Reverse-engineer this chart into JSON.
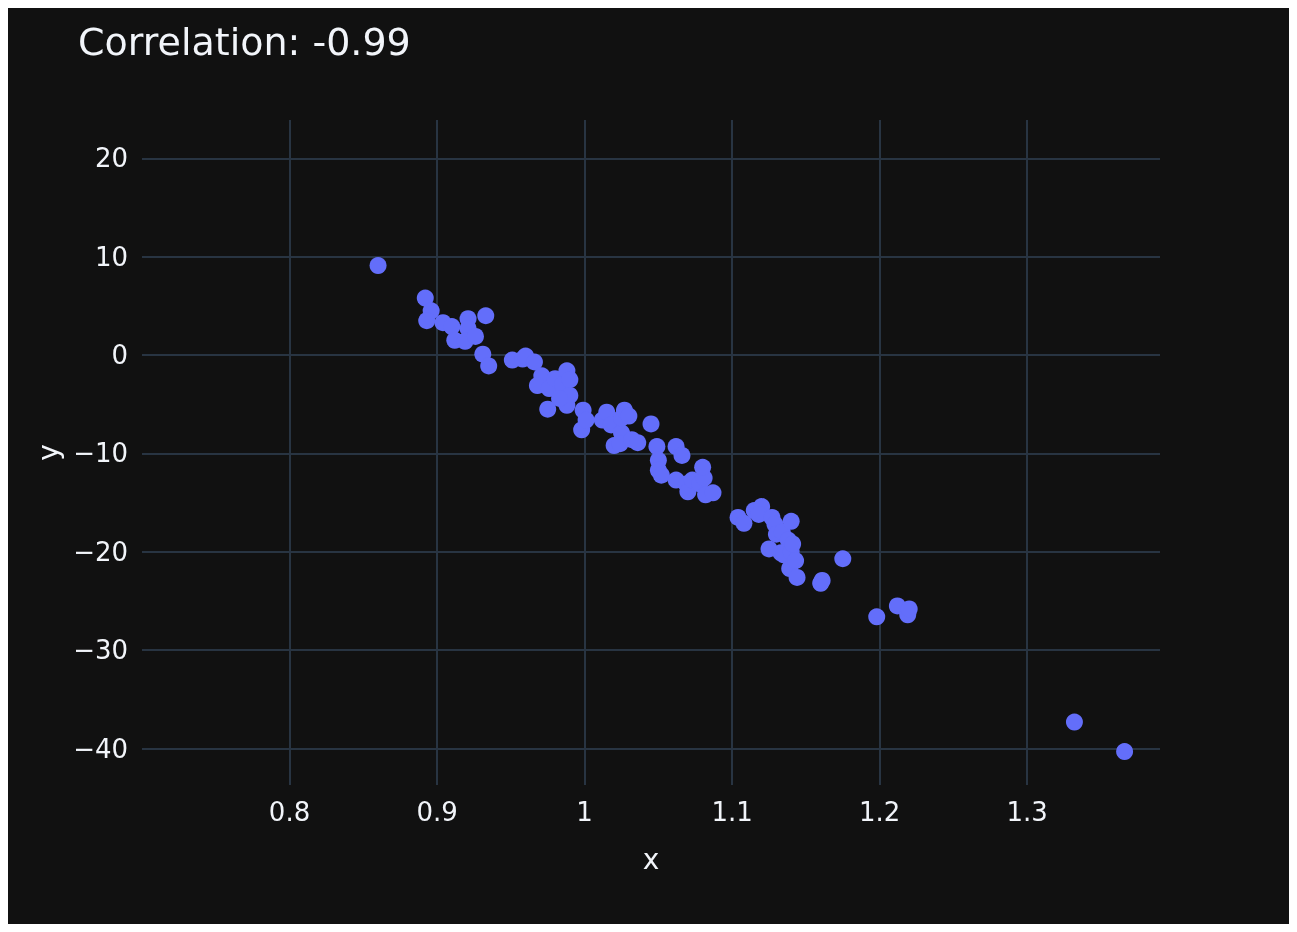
{
  "chart_data": {
    "type": "scatter",
    "title": "Correlation: -0.99",
    "xlabel": "x",
    "ylabel": "y",
    "x": [
      0.86,
      0.892,
      0.896,
      0.893,
      0.904,
      0.91,
      0.912,
      0.921,
      0.921,
      0.919,
      0.926,
      0.933,
      0.931,
      0.935,
      0.951,
      0.958,
      0.96,
      0.966,
      0.971,
      0.968,
      0.976,
      0.98,
      0.985,
      0.988,
      0.99,
      0.99,
      0.988,
      0.975,
      0.983,
      0.999,
      0.998,
      1.001,
      1.012,
      1.015,
      1.018,
      1.02,
      1.025,
      1.024,
      1.025,
      1.027,
      1.03,
      1.032,
      1.036,
      1.045,
      1.049,
      1.05,
      1.05,
      1.052,
      1.062,
      1.066,
      1.062,
      1.069,
      1.07,
      1.073,
      1.078,
      1.081,
      1.08,
      1.082,
      1.087,
      1.104,
      1.108,
      1.115,
      1.12,
      1.118,
      1.127,
      1.129,
      1.13,
      1.134,
      1.14,
      1.138,
      1.133,
      1.125,
      1.135,
      1.14,
      1.141,
      1.139,
      1.143,
      1.144,
      1.16,
      1.161,
      1.175,
      1.198,
      1.212,
      1.219,
      1.22,
      1.332,
      1.366
    ],
    "series": [
      {
        "color": "#636efa",
        "values": [
          9.1,
          5.8,
          4.5,
          3.5,
          3.3,
          2.9,
          1.5,
          3.7,
          2.7,
          1.4,
          1.9,
          4.0,
          0.1,
          -1.1,
          -0.5,
          -0.4,
          -0.1,
          -0.7,
          -2.1,
          -3.1,
          -3.4,
          -2.4,
          -3.0,
          -1.6,
          -2.5,
          -4.1,
          -5.1,
          -5.5,
          -4.4,
          -5.6,
          -7.6,
          -6.6,
          -6.6,
          -5.8,
          -7.1,
          -9.2,
          -7.9,
          -9.0,
          -6.4,
          -5.6,
          -6.2,
          -8.6,
          -8.9,
          -7.0,
          -9.3,
          -10.7,
          -11.7,
          -12.2,
          -9.3,
          -10.2,
          -12.7,
          -13.1,
          -13.9,
          -12.7,
          -13.1,
          -12.5,
          -11.4,
          -14.2,
          -14.0,
          -16.5,
          -17.1,
          -15.8,
          -15.4,
          -16.2,
          -16.5,
          -17.2,
          -18.2,
          -18.0,
          -16.9,
          -18.8,
          -20.1,
          -19.7,
          -20.3,
          -20.0,
          -19.2,
          -21.7,
          -20.9,
          -22.6,
          -23.2,
          -22.9,
          -20.7,
          -26.6,
          -25.5,
          -26.4,
          -25.8,
          -37.3,
          -40.3
        ]
      }
    ],
    "xlim": [
      0.7,
      1.39
    ],
    "xticks": [
      0.8,
      0.9,
      1,
      1.1,
      1.2,
      1.3
    ],
    "ylim": [
      -43.7,
      23.9
    ],
    "yticks": [
      {
        "value": -40,
        "label": "−40"
      },
      {
        "value": -30,
        "label": "−30"
      },
      {
        "value": -20,
        "label": "−20"
      },
      {
        "value": -10,
        "label": "−10"
      },
      0,
      10,
      20
    ],
    "grid": true,
    "marker": "circle"
  }
}
